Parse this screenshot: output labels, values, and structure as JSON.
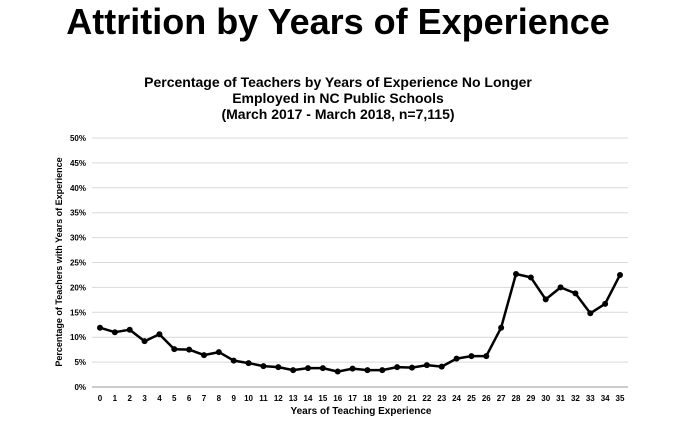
{
  "page": {
    "title": "Attrition by Years of Experience"
  },
  "chart_data": {
    "type": "line",
    "title_lines": [
      "Percentage of Teachers by Years of Experience No Longer",
      "Employed in NC Public Schools",
      "(March 2017 - March 2018, n=7,115)"
    ],
    "xlabel": "Years of Teaching Experience",
    "ylabel": "Percentage of Teachers with Years of Experience",
    "x": [
      0,
      1,
      2,
      3,
      4,
      5,
      6,
      7,
      8,
      9,
      10,
      11,
      12,
      13,
      14,
      15,
      16,
      17,
      18,
      19,
      20,
      21,
      22,
      23,
      24,
      25,
      26,
      27,
      28,
      29,
      30,
      31,
      32,
      33,
      34,
      35
    ],
    "y_ticks": [
      "0%",
      "5%",
      "10%",
      "15%",
      "20%",
      "25%",
      "30%",
      "35%",
      "40%",
      "45%",
      "50%"
    ],
    "ylim": [
      0,
      50
    ],
    "grid": true,
    "legend": "none",
    "series": [
      {
        "values": [
          11.9,
          11.0,
          11.5,
          9.2,
          10.6,
          7.6,
          7.5,
          6.4,
          7.0,
          5.3,
          4.8,
          4.2,
          4.0,
          3.4,
          3.8,
          3.8,
          3.1,
          3.7,
          3.4,
          3.4,
          4.0,
          3.9,
          4.4,
          4.1,
          5.7,
          6.2,
          6.2,
          11.9,
          22.7,
          22.0,
          17.6,
          20.0,
          18.8,
          14.8,
          16.7,
          22.5
        ],
        "color": "#000000"
      }
    ]
  }
}
